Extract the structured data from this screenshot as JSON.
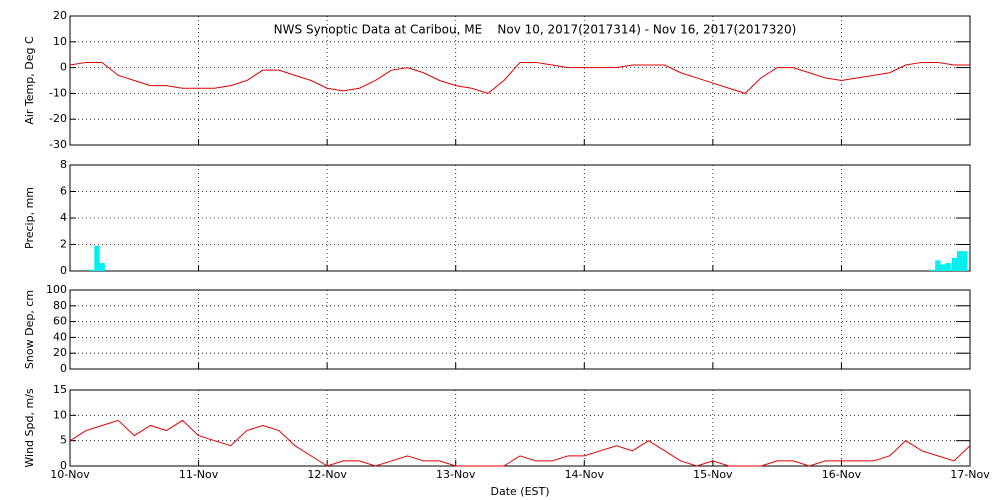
{
  "chart_data": [
    {
      "type": "line",
      "title": "NWS Synoptic Data at Caribou, ME    Nov 10, 2017(2017314) - Nov 16, 2017(2017320)",
      "ylabel": "Air Temp, Deg C",
      "xlim": [
        0,
        7
      ],
      "ylim": [
        -30,
        20
      ],
      "yticks": [
        -30,
        -20,
        -10,
        0,
        10,
        20
      ],
      "grid": true,
      "x": [
        0,
        0.125,
        0.25,
        0.375,
        0.5,
        0.625,
        0.75,
        0.875,
        1,
        1.125,
        1.25,
        1.375,
        1.5,
        1.625,
        1.75,
        1.875,
        2,
        2.125,
        2.25,
        2.375,
        2.5,
        2.625,
        2.75,
        2.875,
        3,
        3.125,
        3.25,
        3.375,
        3.5,
        3.625,
        3.75,
        3.875,
        4,
        4.125,
        4.25,
        4.375,
        4.5,
        4.625,
        4.75,
        4.875,
        5,
        5.125,
        5.25,
        5.375,
        5.5,
        5.625,
        5.75,
        5.875,
        6,
        6.125,
        6.25,
        6.375,
        6.5,
        6.625,
        6.75,
        6.875,
        7
      ],
      "series": [
        {
          "color": "#e00000",
          "values": [
            1,
            2,
            2,
            -3,
            -5,
            -7,
            -7,
            -8,
            -8,
            -8,
            -7,
            -5,
            -1,
            -1,
            -3,
            -5,
            -8,
            -9,
            -8,
            -5,
            -1,
            0,
            -2,
            -5,
            -7,
            -8,
            -10,
            -5,
            2,
            2,
            1,
            0,
            0,
            0,
            0,
            1,
            1,
            1,
            -2,
            -4,
            -6,
            -8,
            -10,
            -4,
            0,
            0,
            -2,
            -4,
            -5,
            -4,
            -3,
            -2,
            1,
            2,
            2,
            1,
            1
          ]
        }
      ]
    },
    {
      "type": "bar",
      "ylabel": "Precip, mm",
      "xlim": [
        0,
        7
      ],
      "ylim": [
        0,
        8
      ],
      "yticks": [
        0,
        2,
        4,
        6,
        8
      ],
      "grid": true,
      "x": [
        0.17,
        0.21,
        0.25,
        6.71,
        6.75,
        6.79,
        6.83,
        6.88,
        6.92,
        6.96
      ],
      "series": [
        {
          "color": "#00f0f0",
          "values": [
            0.1,
            1.9,
            0.6,
            0.1,
            0.8,
            0.5,
            0.6,
            1.0,
            1.5,
            1.5
          ]
        }
      ]
    },
    {
      "type": "line",
      "ylabel": "Snow Dep, cm",
      "xlim": [
        0,
        7
      ],
      "ylim": [
        0,
        100
      ],
      "yticks": [
        0,
        20,
        40,
        60,
        80,
        100
      ],
      "grid": true
    },
    {
      "type": "line",
      "ylabel": "Wind Spd, m/s",
      "xlabel": "Date (EST)",
      "xlim": [
        0,
        7
      ],
      "ylim": [
        0,
        15
      ],
      "yticks": [
        0,
        5,
        10,
        15
      ],
      "grid": true,
      "xticks": [
        {
          "value": 0,
          "label": "10-Nov"
        },
        {
          "value": 1,
          "label": "11-Nov"
        },
        {
          "value": 2,
          "label": "12-Nov"
        },
        {
          "value": 3,
          "label": "13-Nov"
        },
        {
          "value": 4,
          "label": "14-Nov"
        },
        {
          "value": 5,
          "label": "15-Nov"
        },
        {
          "value": 6,
          "label": "16-Nov"
        },
        {
          "value": 7,
          "label": "17-Nov"
        }
      ],
      "x": [
        0,
        0.125,
        0.25,
        0.375,
        0.5,
        0.625,
        0.75,
        0.875,
        1,
        1.125,
        1.25,
        1.375,
        1.5,
        1.625,
        1.75,
        1.875,
        2,
        2.125,
        2.25,
        2.375,
        2.5,
        2.625,
        2.75,
        2.875,
        3,
        3.125,
        3.25,
        3.375,
        3.5,
        3.625,
        3.75,
        3.875,
        4,
        4.125,
        4.25,
        4.375,
        4.5,
        4.625,
        4.75,
        4.875,
        5,
        5.125,
        5.25,
        5.375,
        5.5,
        5.625,
        5.75,
        5.875,
        6,
        6.125,
        6.25,
        6.375,
        6.5,
        6.625,
        6.75,
        6.875,
        7
      ],
      "series": [
        {
          "color": "#e00000",
          "values": [
            5,
            7,
            8,
            9,
            6,
            8,
            7,
            9,
            6,
            5,
            4,
            7,
            8,
            7,
            4,
            2,
            0,
            1,
            1,
            0,
            1,
            2,
            1,
            1,
            0,
            0,
            0,
            0,
            2,
            1,
            1,
            2,
            2,
            3,
            4,
            3,
            5,
            3,
            1,
            0,
            1,
            0,
            0,
            0,
            1,
            1,
            0,
            1,
            1,
            1,
            1,
            2,
            5,
            3,
            2,
            1,
            4
          ]
        }
      ]
    }
  ]
}
